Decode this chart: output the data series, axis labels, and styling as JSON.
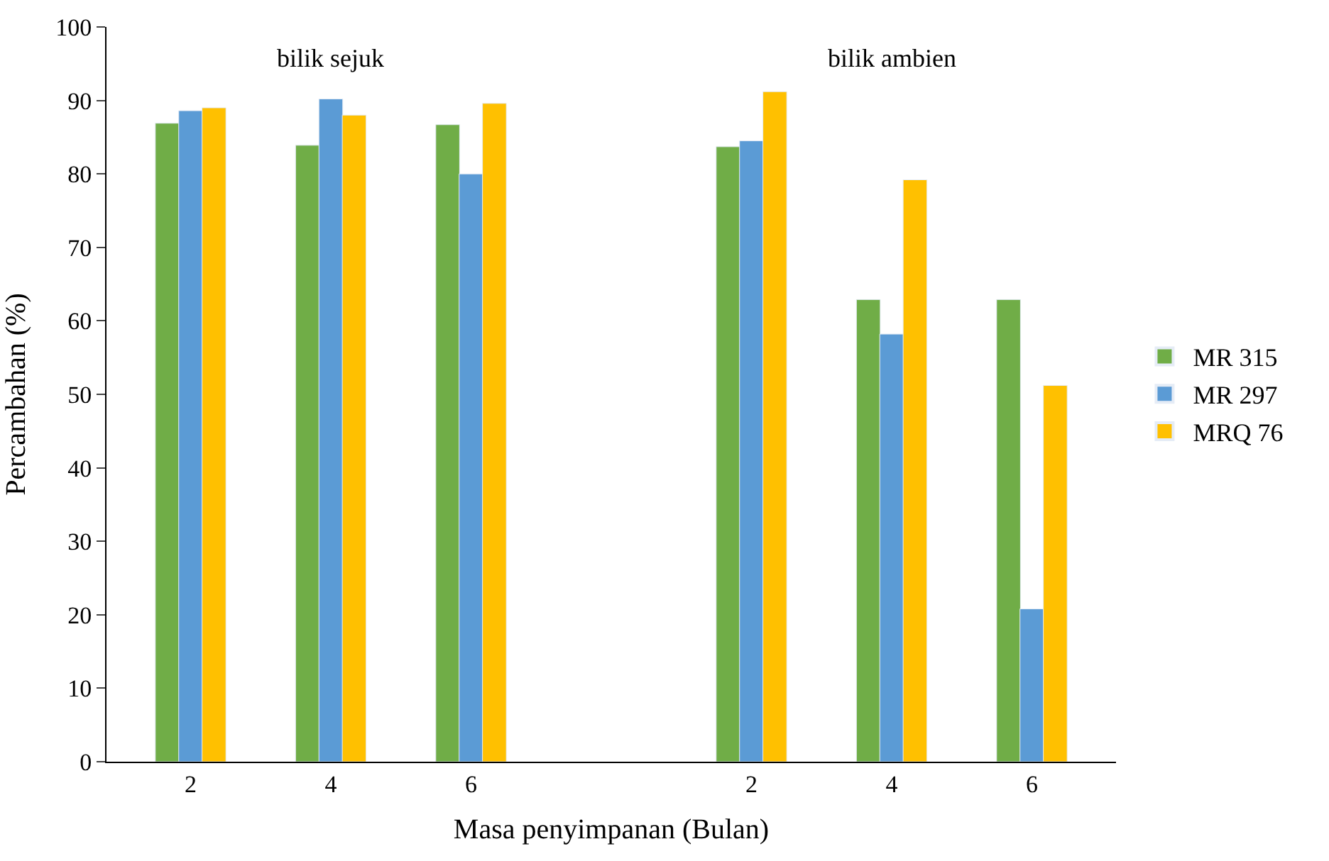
{
  "chart_data": {
    "type": "bar",
    "ylabel": "Percambahan (%)",
    "xlabel": "Masa penyimpanan (Bulan)",
    "annotations": [
      "bilik sejuk",
      "bilik ambien"
    ],
    "categories": [
      "2",
      "4",
      "6",
      null,
      "2",
      "4",
      "6"
    ],
    "series": [
      {
        "name": "MR 315",
        "color": "#70ad47",
        "values": [
          86.9,
          83.9,
          86.7,
          null,
          83.7,
          62.9,
          62.9
        ]
      },
      {
        "name": "MR 297",
        "color": "#5b9bd5",
        "values": [
          88.6,
          90.2,
          80.0,
          null,
          84.5,
          58.2,
          20.8
        ]
      },
      {
        "name": "MRQ 76",
        "color": "#ffc000",
        "values": [
          89.0,
          88.0,
          89.6,
          null,
          91.2,
          79.2,
          51.2
        ]
      }
    ],
    "ylim": [
      0,
      100
    ],
    "yticks": [
      0,
      10,
      20,
      30,
      40,
      50,
      60,
      70,
      80,
      90,
      100
    ],
    "legend": "right"
  }
}
